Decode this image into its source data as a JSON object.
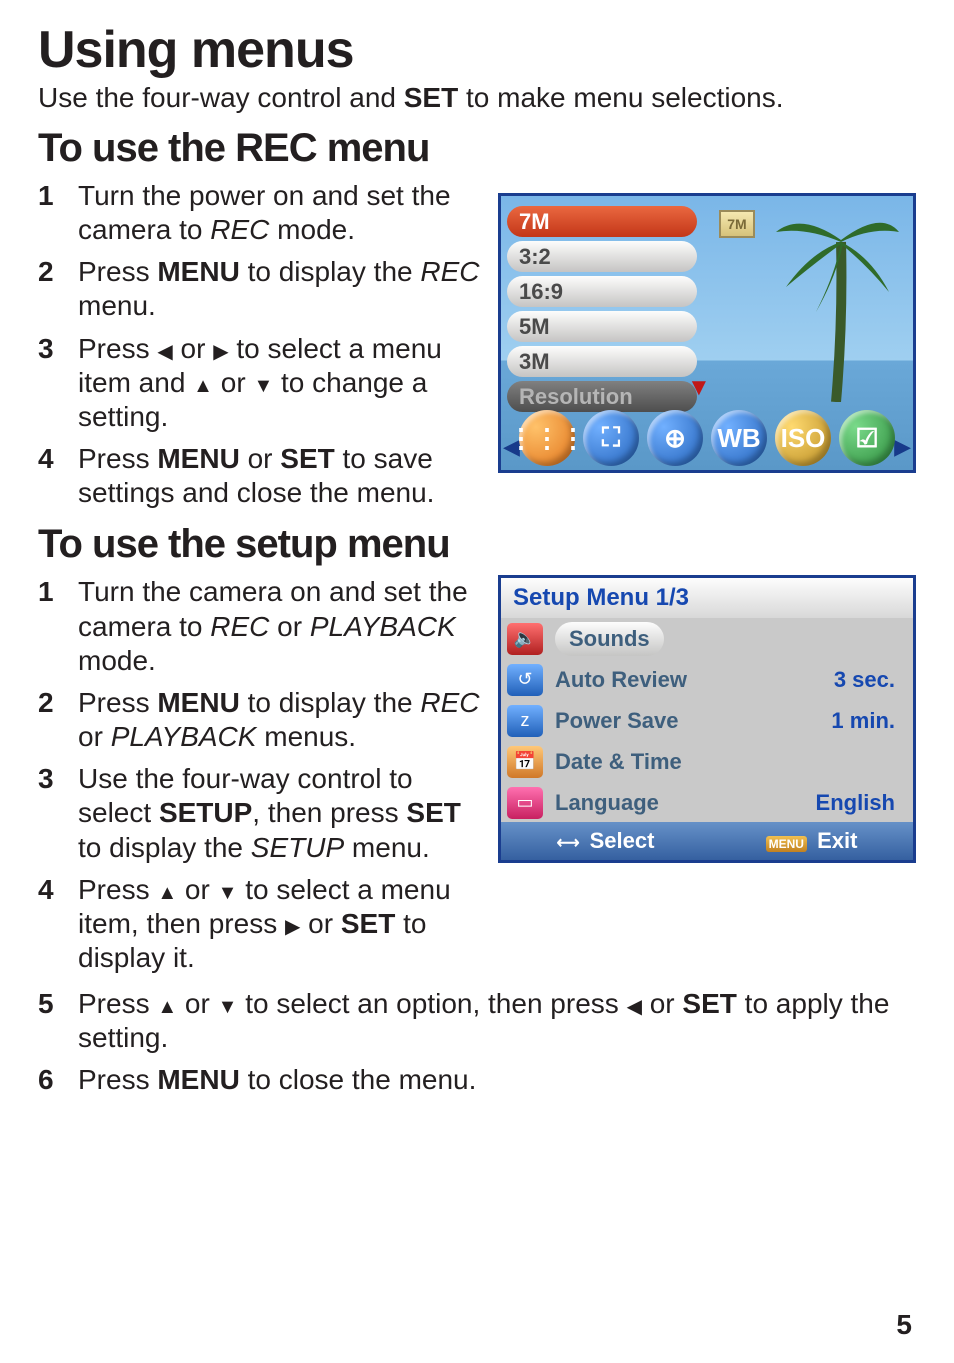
{
  "page_number": 5,
  "h1": "Using menus",
  "intro_prefix": "Use the four-way control and ",
  "intro_bold": "SET",
  "intro_suffix": " to make menu selections.",
  "rec": {
    "heading": "To use the REC menu",
    "steps": [
      {
        "parts": [
          {
            "t": "Turn the power on and set the camera to "
          },
          {
            "t": "REC",
            "style": "i"
          },
          {
            "t": " mode."
          }
        ]
      },
      {
        "parts": [
          {
            "t": "Press "
          },
          {
            "t": "MENU",
            "style": "b"
          },
          {
            "t": " to display the "
          },
          {
            "t": "REC",
            "style": "i"
          },
          {
            "t": " menu."
          }
        ]
      },
      {
        "parts": [
          {
            "t": "Press "
          },
          {
            "t": "◀",
            "style": "tri"
          },
          {
            "t": " or "
          },
          {
            "t": "▶",
            "style": "tri"
          },
          {
            "t": " to select a menu item and "
          },
          {
            "t": "▲",
            "style": "tri"
          },
          {
            "t": " or "
          },
          {
            "t": "▼",
            "style": "tri"
          },
          {
            "t": " to change a setting."
          }
        ]
      },
      {
        "parts": [
          {
            "t": "Press "
          },
          {
            "t": "MENU",
            "style": "b"
          },
          {
            "t": " or "
          },
          {
            "t": "SET",
            "style": "b"
          },
          {
            "t": " to save settings and close the menu."
          }
        ]
      }
    ],
    "shot": {
      "items": [
        {
          "label": "7M",
          "selected": true
        },
        {
          "label": "3:2"
        },
        {
          "label": "16:9"
        },
        {
          "label": "5M"
        },
        {
          "label": "3M"
        },
        {
          "label": "Resolution",
          "dark": true
        }
      ],
      "size_indicator": "7M",
      "icon_colors": [
        "#e0721a",
        "#2160b8",
        "#2160b8",
        "#2160b8",
        "#b78a20",
        "#2a8a3a"
      ],
      "icon_glyphs": [
        "⋮⋮⋮",
        "⛶",
        "⊕",
        "WB",
        "ISO",
        "☑"
      ]
    }
  },
  "setup": {
    "heading": "To use the setup menu",
    "steps_a": [
      {
        "parts": [
          {
            "t": "Turn the camera on and set the camera to "
          },
          {
            "t": "REC",
            "style": "i"
          },
          {
            "t": " or "
          },
          {
            "t": "PLAYBACK",
            "style": "i"
          },
          {
            "t": " mode."
          }
        ]
      },
      {
        "parts": [
          {
            "t": "Press "
          },
          {
            "t": "MENU",
            "style": "b"
          },
          {
            "t": " to display the "
          },
          {
            "t": "REC",
            "style": "i"
          },
          {
            "t": " or "
          },
          {
            "t": "PLAYBACK",
            "style": "i"
          },
          {
            "t": " menus."
          }
        ]
      },
      {
        "parts": [
          {
            "t": "Use the four-way control to select "
          },
          {
            "t": "SETUP",
            "style": "b"
          },
          {
            "t": ", then press "
          },
          {
            "t": "SET",
            "style": "b"
          },
          {
            "t": " to display the "
          },
          {
            "t": "SETUP",
            "style": "i"
          },
          {
            "t": " menu."
          }
        ]
      },
      {
        "parts": [
          {
            "t": "Press "
          },
          {
            "t": "▲",
            "style": "tri"
          },
          {
            "t": " or "
          },
          {
            "t": "▼",
            "style": "tri"
          },
          {
            "t": " to select a menu item, then press "
          },
          {
            "t": "▶",
            "style": "tri"
          },
          {
            "t": " or "
          },
          {
            "t": "SET",
            "style": "b"
          },
          {
            "t": " to display it."
          }
        ]
      }
    ],
    "steps_b": [
      {
        "num": 5,
        "parts": [
          {
            "t": "Press "
          },
          {
            "t": "▲",
            "style": "tri"
          },
          {
            "t": " or "
          },
          {
            "t": "▼",
            "style": "tri"
          },
          {
            "t": " to select an option, then press "
          },
          {
            "t": "◀",
            "style": "tri"
          },
          {
            "t": " or "
          },
          {
            "t": "SET",
            "style": "b"
          },
          {
            "t": " to apply the setting."
          }
        ]
      },
      {
        "num": 6,
        "parts": [
          {
            "t": "Press "
          },
          {
            "t": "MENU",
            "style": "b"
          },
          {
            "t": " to close the menu."
          }
        ]
      }
    ],
    "shot": {
      "title": "Setup Menu 1/3",
      "rows": [
        {
          "icon_bg": "#b02020",
          "glyph": "🔈",
          "label": "Sounds",
          "value": "",
          "selected": true
        },
        {
          "icon_bg": "#2160b8",
          "glyph": "↺",
          "label": "Auto Review",
          "value": "3 sec."
        },
        {
          "icon_bg": "#2160b8",
          "glyph": "z",
          "label": "Power Save",
          "value": "1 min."
        },
        {
          "icon_bg": "#d07828",
          "glyph": "📅",
          "label": "Date & Time",
          "value": ""
        },
        {
          "icon_bg": "#c82060",
          "glyph": "▭",
          "label": "Language",
          "value": "English"
        }
      ],
      "footer_select_glyph": "⟷",
      "footer_select": "Select",
      "footer_exit_glyph": "MENU",
      "footer_exit": "Exit"
    }
  }
}
